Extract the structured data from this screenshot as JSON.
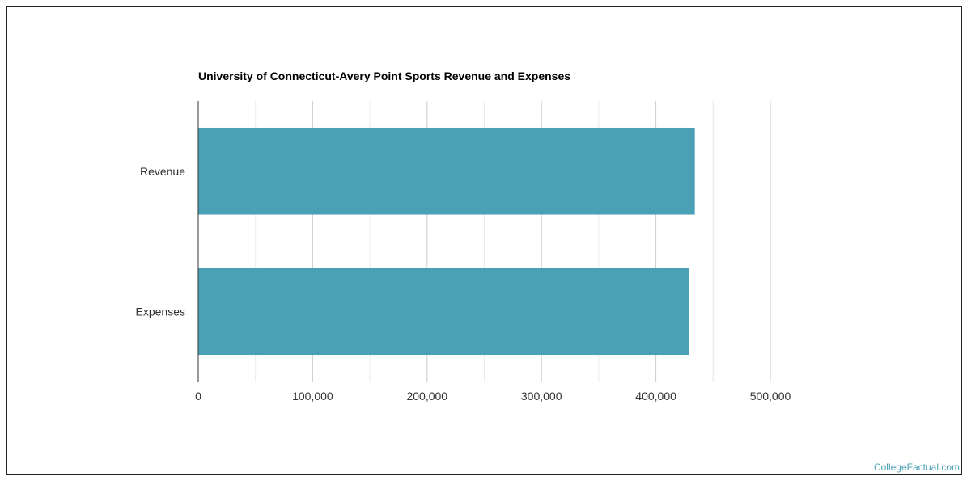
{
  "chart_data": {
    "type": "bar",
    "orientation": "horizontal",
    "title": "University of Connecticut-Avery Point Sports Revenue and Expenses",
    "categories": [
      "Revenue",
      "Expenses"
    ],
    "values": [
      434000,
      429000
    ],
    "xlim": [
      0,
      500000
    ],
    "xticks": [
      0,
      100000,
      200000,
      300000,
      400000,
      500000
    ],
    "xtick_labels": [
      "0",
      "100,000",
      "200,000",
      "300,000",
      "400,000",
      "500,000"
    ],
    "grid": true,
    "bar_color": "#4aa0b5"
  },
  "watermark": "CollegeFactual.com"
}
